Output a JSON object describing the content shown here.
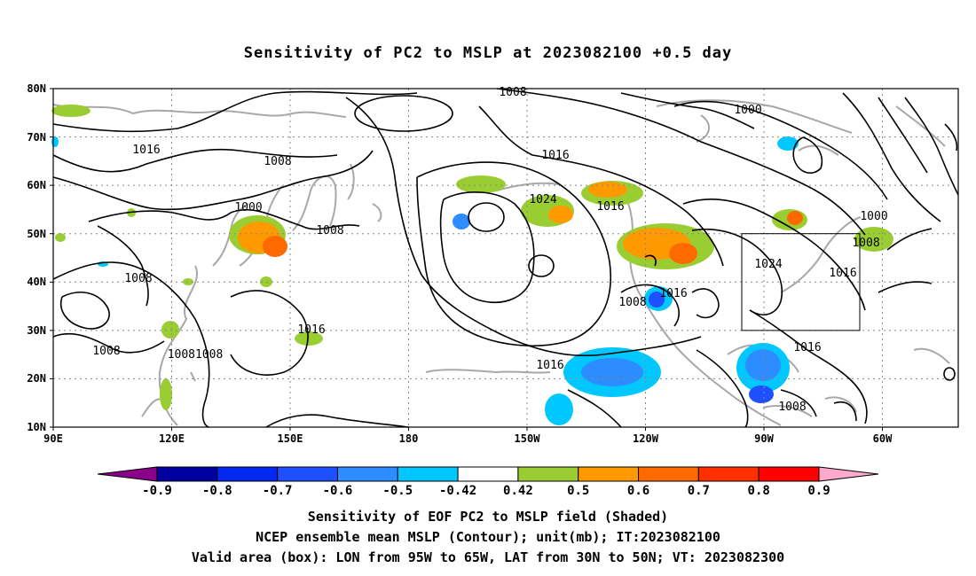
{
  "title": "Sensitivity of PC2 to MSLP at 2023082100 +0.5 day",
  "map": {
    "lat_labels": [
      "80N",
      "70N",
      "60N",
      "50N",
      "40N",
      "30N",
      "20N",
      "10N"
    ],
    "lon_labels": [
      "90E",
      "120E",
      "150E",
      "180",
      "150W",
      "120W",
      "90W",
      "60W"
    ],
    "contour_labels": [
      {
        "text": "1008"
      },
      {
        "text": "1016"
      },
      {
        "text": "1008"
      },
      {
        "text": "1000"
      },
      {
        "text": "1008"
      },
      {
        "text": "1008"
      },
      {
        "text": "1016"
      },
      {
        "text": "1008"
      },
      {
        "text": "10081008"
      },
      {
        "text": "1016"
      },
      {
        "text": "1024"
      },
      {
        "text": "1016"
      },
      {
        "text": "1016"
      },
      {
        "text": "1008"
      },
      {
        "text": "1016"
      },
      {
        "text": "1000"
      },
      {
        "text": "1024"
      },
      {
        "text": "1016"
      },
      {
        "text": "1000"
      },
      {
        "text": "1008"
      },
      {
        "text": "1016"
      },
      {
        "text": "1008"
      }
    ],
    "box": {
      "lon_range": [
        "95W",
        "65W"
      ],
      "lat_range": [
        "30N",
        "50N"
      ]
    }
  },
  "colorbar": {
    "labels": [
      "-0.9",
      "-0.8",
      "-0.7",
      "-0.6",
      "-0.5",
      "-0.42",
      "0.42",
      "0.5",
      "0.6",
      "0.7",
      "0.8",
      "0.9"
    ],
    "colors": [
      "#8b008b",
      "#0000a0",
      "#0028f0",
      "#1e50ff",
      "#2d8cff",
      "#00c8ff",
      "#ffffff",
      "#9acd32",
      "#ff9900",
      "#ff6a00",
      "#ff3000",
      "#ff0000",
      "#ffaacc"
    ]
  },
  "captions": {
    "line1": "Sensitivity of EOF PC2 to MSLP field (Shaded)",
    "line2": "NCEP ensemble mean MSLP (Contour); unit(mb); IT:2023082100",
    "line3": "Valid area (box): LON from 95W to 65W, LAT from 30N to 50N; VT: 2023082300"
  }
}
